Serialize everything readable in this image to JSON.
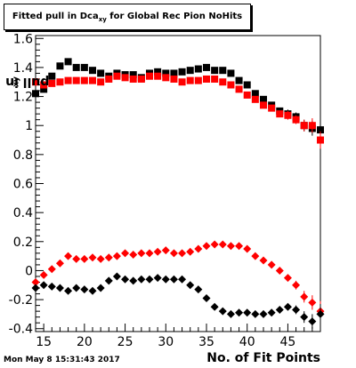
{
  "chart_data": {
    "type": "scatter",
    "title_main": "Fitted pull in Dca",
    "title_sub": "xy",
    "title_rest": " for Global Rec Pion NoHits",
    "xlabel": "No. of Fit Points",
    "ylabel": "pull in Dca",
    "ylabel_sub": "xy",
    "xlim": [
      14,
      49
    ],
    "ylim": [
      -0.42,
      1.62
    ],
    "xticks": [
      15,
      20,
      25,
      30,
      35,
      40,
      45
    ],
    "yticks": [
      -0.4,
      -0.2,
      0,
      0.2,
      0.4,
      0.6,
      0.8,
      1,
      1.2,
      1.4,
      1.6
    ],
    "ytick_labels": [
      "-0.4",
      "-0.2",
      "0",
      "0.2",
      "0.4",
      "0.6",
      "0.8",
      "1",
      "1.2",
      "1.4",
      "1.6"
    ],
    "series": [
      {
        "color": "#000000",
        "marker": "square",
        "x": [
          14,
          15,
          16,
          17,
          18,
          19,
          20,
          21,
          22,
          23,
          24,
          25,
          26,
          27,
          28,
          29,
          30,
          31,
          32,
          33,
          34,
          35,
          36,
          37,
          38,
          39,
          40,
          41,
          42,
          43,
          44,
          45,
          46,
          47,
          48,
          49
        ],
        "y": [
          1.22,
          1.25,
          1.34,
          1.41,
          1.44,
          1.4,
          1.4,
          1.38,
          1.36,
          1.34,
          1.36,
          1.35,
          1.35,
          1.33,
          1.36,
          1.37,
          1.36,
          1.36,
          1.37,
          1.38,
          1.39,
          1.4,
          1.38,
          1.38,
          1.36,
          1.31,
          1.28,
          1.22,
          1.18,
          1.14,
          1.1,
          1.08,
          1.06,
          1.0,
          0.98,
          0.97
        ],
        "err": [
          0.02,
          0.02,
          0.02,
          0.02,
          0.02,
          0.02,
          0.02,
          0.02,
          0.02,
          0.02,
          0.02,
          0.02,
          0.02,
          0.02,
          0.02,
          0.02,
          0.02,
          0.02,
          0.02,
          0.02,
          0.02,
          0.02,
          0.02,
          0.02,
          0.02,
          0.02,
          0.02,
          0.02,
          0.02,
          0.02,
          0.02,
          0.03,
          0.03,
          0.04,
          0.05,
          0.06
        ]
      },
      {
        "color": "#ff0000",
        "marker": "square",
        "x": [
          14,
          15,
          16,
          17,
          18,
          19,
          20,
          21,
          22,
          23,
          24,
          25,
          26,
          27,
          28,
          29,
          30,
          31,
          32,
          33,
          34,
          35,
          36,
          37,
          38,
          39,
          40,
          41,
          42,
          43,
          44,
          45,
          46,
          47,
          48,
          49
        ],
        "y": [
          1.3,
          1.28,
          1.29,
          1.3,
          1.31,
          1.31,
          1.31,
          1.31,
          1.3,
          1.32,
          1.34,
          1.33,
          1.32,
          1.32,
          1.34,
          1.34,
          1.33,
          1.32,
          1.3,
          1.31,
          1.31,
          1.32,
          1.32,
          1.3,
          1.28,
          1.25,
          1.21,
          1.18,
          1.14,
          1.12,
          1.08,
          1.07,
          1.04,
          1.0,
          1.0,
          0.9
        ],
        "err": [
          0.02,
          0.02,
          0.02,
          0.02,
          0.02,
          0.02,
          0.02,
          0.02,
          0.02,
          0.02,
          0.02,
          0.02,
          0.02,
          0.02,
          0.02,
          0.02,
          0.02,
          0.02,
          0.02,
          0.02,
          0.02,
          0.02,
          0.02,
          0.02,
          0.02,
          0.02,
          0.02,
          0.02,
          0.02,
          0.02,
          0.02,
          0.03,
          0.03,
          0.04,
          0.05,
          0.06
        ]
      },
      {
        "color": "#ff0000",
        "marker": "diamond",
        "x": [
          14,
          15,
          16,
          17,
          18,
          19,
          20,
          21,
          22,
          23,
          24,
          25,
          26,
          27,
          28,
          29,
          30,
          31,
          32,
          33,
          34,
          35,
          36,
          37,
          38,
          39,
          40,
          41,
          42,
          43,
          44,
          45,
          46,
          47,
          48,
          49
        ],
        "y": [
          -0.08,
          -0.03,
          0.01,
          0.05,
          0.1,
          0.08,
          0.08,
          0.09,
          0.08,
          0.09,
          0.1,
          0.12,
          0.11,
          0.12,
          0.12,
          0.13,
          0.14,
          0.12,
          0.12,
          0.13,
          0.15,
          0.17,
          0.18,
          0.18,
          0.17,
          0.17,
          0.15,
          0.1,
          0.07,
          0.04,
          0.0,
          -0.05,
          -0.1,
          -0.18,
          -0.22,
          -0.28
        ],
        "err": [
          0.01,
          0.01,
          0.01,
          0.01,
          0.01,
          0.01,
          0.01,
          0.01,
          0.01,
          0.01,
          0.01,
          0.01,
          0.01,
          0.01,
          0.01,
          0.01,
          0.01,
          0.01,
          0.01,
          0.01,
          0.01,
          0.01,
          0.01,
          0.01,
          0.01,
          0.01,
          0.01,
          0.01,
          0.01,
          0.01,
          0.01,
          0.02,
          0.03,
          0.04,
          0.05,
          0.07
        ]
      },
      {
        "color": "#000000",
        "marker": "diamond",
        "x": [
          14,
          15,
          16,
          17,
          18,
          19,
          20,
          21,
          22,
          23,
          24,
          25,
          26,
          27,
          28,
          29,
          30,
          31,
          32,
          33,
          34,
          35,
          36,
          37,
          38,
          39,
          40,
          41,
          42,
          43,
          44,
          45,
          46,
          47,
          48,
          49
        ],
        "y": [
          -0.12,
          -0.1,
          -0.11,
          -0.12,
          -0.14,
          -0.12,
          -0.13,
          -0.14,
          -0.12,
          -0.07,
          -0.04,
          -0.06,
          -0.07,
          -0.06,
          -0.06,
          -0.05,
          -0.06,
          -0.06,
          -0.06,
          -0.1,
          -0.13,
          -0.19,
          -0.25,
          -0.28,
          -0.3,
          -0.29,
          -0.29,
          -0.3,
          -0.3,
          -0.29,
          -0.27,
          -0.25,
          -0.27,
          -0.32,
          -0.35,
          -0.3
        ],
        "err": [
          0.01,
          0.01,
          0.01,
          0.01,
          0.01,
          0.01,
          0.01,
          0.01,
          0.01,
          0.01,
          0.01,
          0.01,
          0.01,
          0.01,
          0.01,
          0.01,
          0.01,
          0.01,
          0.01,
          0.01,
          0.01,
          0.01,
          0.01,
          0.01,
          0.01,
          0.01,
          0.01,
          0.01,
          0.01,
          0.01,
          0.01,
          0.02,
          0.03,
          0.04,
          0.05,
          0.07
        ]
      }
    ]
  },
  "footer": {
    "timestamp": "Mon May  8 15:31:43 2017"
  }
}
